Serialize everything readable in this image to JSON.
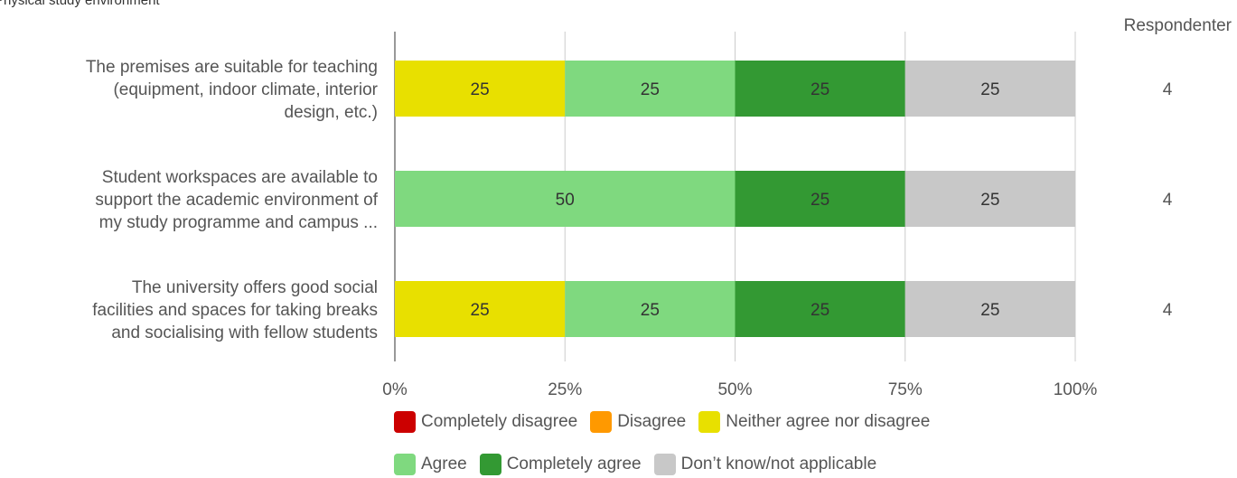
{
  "title": "Physical study environment",
  "respondents_header": "Respondenter",
  "colors": {
    "completely_disagree": "#cc0000",
    "disagree": "#ff9900",
    "neither": "#e8e000",
    "agree": "#7fd97f",
    "completely_agree": "#339933",
    "dont_know": "#c8c8c8"
  },
  "legend": {
    "row1": [
      {
        "label": "Completely disagree",
        "color": "#cc0000"
      },
      {
        "label": "Disagree",
        "color": "#ff9900"
      },
      {
        "label": "Neither agree nor disagree",
        "color": "#e8e000"
      }
    ],
    "row2": [
      {
        "label": "Agree",
        "color": "#7fd97f"
      },
      {
        "label": "Completely agree",
        "color": "#339933"
      },
      {
        "label": "Don’t know/not applicable",
        "color": "#c8c8c8"
      }
    ]
  },
  "chart_data": {
    "type": "bar",
    "orientation": "horizontal-stacked-100",
    "x_ticks": [
      "0%",
      "25%",
      "50%",
      "75%",
      "100%"
    ],
    "xlim": [
      0,
      100
    ],
    "grid": true,
    "legend_position": "bottom",
    "categories": [
      [
        "The premises are suitable for teaching",
        "(equipment, indoor climate, interior",
        "design, etc.)"
      ],
      [
        "Student workspaces are available to",
        "support the academic environment of",
        "my study programme and campus ..."
      ],
      [
        "The university offers good social",
        "facilities and spaces for taking breaks",
        "and socialising with fellow students"
      ]
    ],
    "respondents": [
      "4",
      "4",
      "4"
    ],
    "series": [
      {
        "name": "Completely disagree",
        "color": "#cc0000",
        "values": [
          0,
          0,
          0
        ]
      },
      {
        "name": "Disagree",
        "color": "#ff9900",
        "values": [
          0,
          0,
          0
        ]
      },
      {
        "name": "Neither agree nor disagree",
        "color": "#e8e000",
        "values": [
          25,
          0,
          25
        ]
      },
      {
        "name": "Agree",
        "color": "#7fd97f",
        "values": [
          25,
          50,
          25
        ]
      },
      {
        "name": "Completely agree",
        "color": "#339933",
        "values": [
          25,
          25,
          25
        ]
      },
      {
        "name": "Don’t know/not applicable",
        "color": "#c8c8c8",
        "values": [
          25,
          25,
          25
        ]
      }
    ]
  }
}
